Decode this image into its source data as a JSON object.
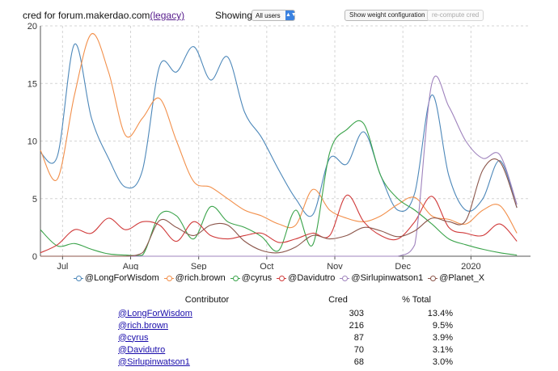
{
  "header": {
    "title_prefix": "cred for forum.makerdao.com",
    "title_link": "(legacy)",
    "showing_label": "Showing:",
    "filter_selected": "All users",
    "weight_button": "Show weight configuration",
    "recompute_button": "re-compute cred"
  },
  "chart_data": {
    "type": "line",
    "x_ticks": [
      "Jul",
      "Aug",
      "Sep",
      "Oct",
      "Nov",
      "Dec",
      "2020"
    ],
    "y_ticks": [
      0,
      5,
      10,
      15,
      20
    ],
    "ylim": [
      0,
      20
    ],
    "grid": true,
    "legend_position": "bottom",
    "series": [
      {
        "name": "@LongForWisdom",
        "color": "#4c87b9",
        "points": [
          [
            0,
            9
          ],
          [
            1,
            8.7
          ],
          [
            2,
            18.4
          ],
          [
            3,
            12
          ],
          [
            4,
            8.5
          ],
          [
            5,
            6
          ],
          [
            6,
            7.5
          ],
          [
            7,
            16.5
          ],
          [
            8,
            16
          ],
          [
            9,
            18.2
          ],
          [
            10,
            15.3
          ],
          [
            11,
            17.3
          ],
          [
            12,
            12.5
          ],
          [
            13,
            10.3
          ],
          [
            14,
            7.5
          ],
          [
            15,
            5
          ],
          [
            16,
            3.6
          ],
          [
            17,
            8.5
          ],
          [
            18,
            8
          ],
          [
            19,
            10.8
          ],
          [
            20,
            7
          ],
          [
            21,
            4
          ],
          [
            22,
            5.5
          ],
          [
            23,
            14
          ],
          [
            24,
            7
          ],
          [
            25,
            4
          ],
          [
            26,
            5
          ],
          [
            27,
            8.3
          ],
          [
            28,
            4.2
          ]
        ]
      },
      {
        "name": "@rich.brown",
        "color": "#f28f4a",
        "points": [
          [
            0,
            9.2
          ],
          [
            1,
            6.7
          ],
          [
            2,
            14
          ],
          [
            3,
            19.3
          ],
          [
            4,
            16
          ],
          [
            5,
            10.5
          ],
          [
            6,
            12
          ],
          [
            7,
            13.7
          ],
          [
            8,
            10
          ],
          [
            9,
            6.5
          ],
          [
            10,
            6
          ],
          [
            11,
            5
          ],
          [
            12,
            4
          ],
          [
            13,
            3.5
          ],
          [
            14,
            2.8
          ],
          [
            15,
            2.7
          ],
          [
            16,
            5.8
          ],
          [
            17,
            4
          ],
          [
            18,
            3.3
          ],
          [
            19,
            3
          ],
          [
            20,
            3.5
          ],
          [
            21,
            4.5
          ],
          [
            22,
            5.1
          ],
          [
            23,
            3.5
          ],
          [
            24,
            3.2
          ],
          [
            25,
            2.8
          ],
          [
            26,
            4
          ],
          [
            27,
            4.4
          ],
          [
            28,
            2
          ]
        ]
      },
      {
        "name": "@cyrus",
        "color": "#3aa34a",
        "points": [
          [
            0,
            2.3
          ],
          [
            1,
            0.9
          ],
          [
            2,
            1.1
          ],
          [
            3,
            0.6
          ],
          [
            4,
            0.2
          ],
          [
            5,
            0.1
          ],
          [
            6,
            0.1
          ],
          [
            7,
            3.6
          ],
          [
            8,
            3.5
          ],
          [
            9,
            1.5
          ],
          [
            10,
            4.3
          ],
          [
            11,
            3
          ],
          [
            12,
            2.5
          ],
          [
            13,
            1.7
          ],
          [
            14,
            0.5
          ],
          [
            15,
            4
          ],
          [
            16,
            1
          ],
          [
            17,
            9
          ],
          [
            18,
            11
          ],
          [
            19,
            11.5
          ],
          [
            20,
            7
          ],
          [
            21,
            5
          ],
          [
            22,
            4
          ],
          [
            23,
            2.8
          ],
          [
            24,
            1.5
          ],
          [
            25,
            1
          ],
          [
            26,
            0.6
          ],
          [
            27,
            0.3
          ],
          [
            28,
            0.1
          ]
        ]
      },
      {
        "name": "@Davidutro",
        "color": "#d03a3a",
        "points": [
          [
            0,
            0.3
          ],
          [
            1,
            1
          ],
          [
            2,
            2.3
          ],
          [
            3,
            2
          ],
          [
            4,
            3.3
          ],
          [
            5,
            2.3
          ],
          [
            6,
            3
          ],
          [
            7,
            2.7
          ],
          [
            8,
            1.3
          ],
          [
            9,
            3
          ],
          [
            10,
            1.8
          ],
          [
            11,
            1.5
          ],
          [
            12,
            1.8
          ],
          [
            13,
            2
          ],
          [
            14,
            1.2
          ],
          [
            15,
            1.5
          ],
          [
            16,
            2
          ],
          [
            17,
            1.8
          ],
          [
            18,
            5.3
          ],
          [
            19,
            3
          ],
          [
            20,
            1.8
          ],
          [
            21,
            1.5
          ],
          [
            22,
            3
          ],
          [
            23,
            5.2
          ],
          [
            24,
            2.5
          ],
          [
            25,
            2
          ],
          [
            26,
            1.8
          ],
          [
            27,
            2.8
          ],
          [
            28,
            1.3
          ]
        ]
      },
      {
        "name": "@Sirlupinwatson1",
        "color": "#9f83bd",
        "points": [
          [
            0,
            0
          ],
          [
            1,
            0
          ],
          [
            2,
            0
          ],
          [
            3,
            0
          ],
          [
            4,
            0
          ],
          [
            5,
            0
          ],
          [
            6,
            0
          ],
          [
            7,
            0
          ],
          [
            8,
            0
          ],
          [
            9,
            0
          ],
          [
            10,
            0
          ],
          [
            11,
            0
          ],
          [
            12,
            0
          ],
          [
            13,
            0
          ],
          [
            14,
            0
          ],
          [
            15,
            0
          ],
          [
            16,
            0
          ],
          [
            17,
            0
          ],
          [
            18,
            0
          ],
          [
            19,
            0
          ],
          [
            20,
            0
          ],
          [
            21,
            0
          ],
          [
            22,
            1
          ],
          [
            23,
            15
          ],
          [
            24,
            13
          ],
          [
            25,
            10
          ],
          [
            26,
            8.5
          ],
          [
            27,
            8.8
          ],
          [
            28,
            4.5
          ]
        ]
      },
      {
        "name": "@Planet_X",
        "color": "#8c564b",
        "points": [
          [
            0,
            0
          ],
          [
            1,
            0
          ],
          [
            2,
            0
          ],
          [
            3,
            0
          ],
          [
            4,
            0
          ],
          [
            5,
            0
          ],
          [
            6,
            0.3
          ],
          [
            7,
            3.1
          ],
          [
            8,
            2.5
          ],
          [
            9,
            1.8
          ],
          [
            10,
            2.7
          ],
          [
            11,
            2.7
          ],
          [
            12,
            1.3
          ],
          [
            13,
            0.5
          ],
          [
            14,
            0.3
          ],
          [
            15,
            0.8
          ],
          [
            16,
            1.8
          ],
          [
            17,
            1.5
          ],
          [
            18,
            1.8
          ],
          [
            19,
            2.5
          ],
          [
            20,
            2.2
          ],
          [
            21,
            1.7
          ],
          [
            22,
            2.2
          ],
          [
            23,
            3.3
          ],
          [
            24,
            3
          ],
          [
            25,
            3.1
          ],
          [
            26,
            7.5
          ],
          [
            27,
            8.2
          ],
          [
            28,
            4.2
          ]
        ]
      }
    ]
  },
  "table": {
    "headers": [
      "Contributor",
      "Cred",
      "% Total"
    ],
    "rows": [
      {
        "name": "@LongForWisdom",
        "cred": "303",
        "pct": "13.4%"
      },
      {
        "name": "@rich.brown",
        "cred": "216",
        "pct": "9.5%"
      },
      {
        "name": "@cyrus",
        "cred": "87",
        "pct": "3.9%"
      },
      {
        "name": "@Davidutro",
        "cred": "70",
        "pct": "3.1%"
      },
      {
        "name": "@Sirlupinwatson1",
        "cred": "68",
        "pct": "3.0%"
      }
    ]
  }
}
